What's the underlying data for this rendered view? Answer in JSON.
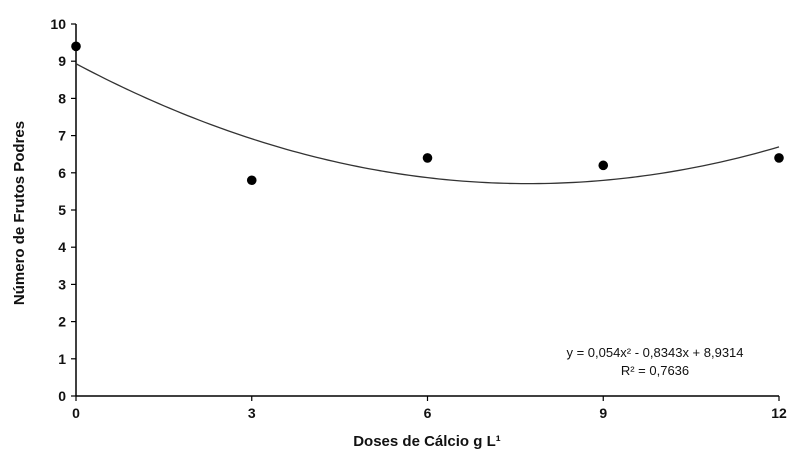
{
  "chart_data": {
    "type": "scatter",
    "xlabel": "Doses  de Cálcio g L¹",
    "ylabel": "Número de Frutos Podres",
    "xlim": [
      0,
      12
    ],
    "ylim": [
      0,
      10
    ],
    "xticks": [
      0,
      3,
      6,
      9,
      12
    ],
    "yticks": [
      0,
      1,
      2,
      3,
      4,
      5,
      6,
      7,
      8,
      9,
      10
    ],
    "grid": false,
    "points": [
      {
        "x": 0,
        "y": 9.4
      },
      {
        "x": 3,
        "y": 5.8
      },
      {
        "x": 6,
        "y": 6.4
      },
      {
        "x": 9,
        "y": 6.2
      },
      {
        "x": 12,
        "y": 6.4
      }
    ],
    "trendline": {
      "type": "quadratic",
      "coefficients": {
        "a": 0.054,
        "b": -0.8343,
        "c": 8.9314
      }
    },
    "annotations": {
      "equation": "y = 0,054x² - 0,8343x + 8,9314",
      "r_squared": "R² = 0,7636"
    },
    "colors": {
      "marker": "#000000",
      "line": "#333333",
      "axis": "#000000"
    }
  }
}
